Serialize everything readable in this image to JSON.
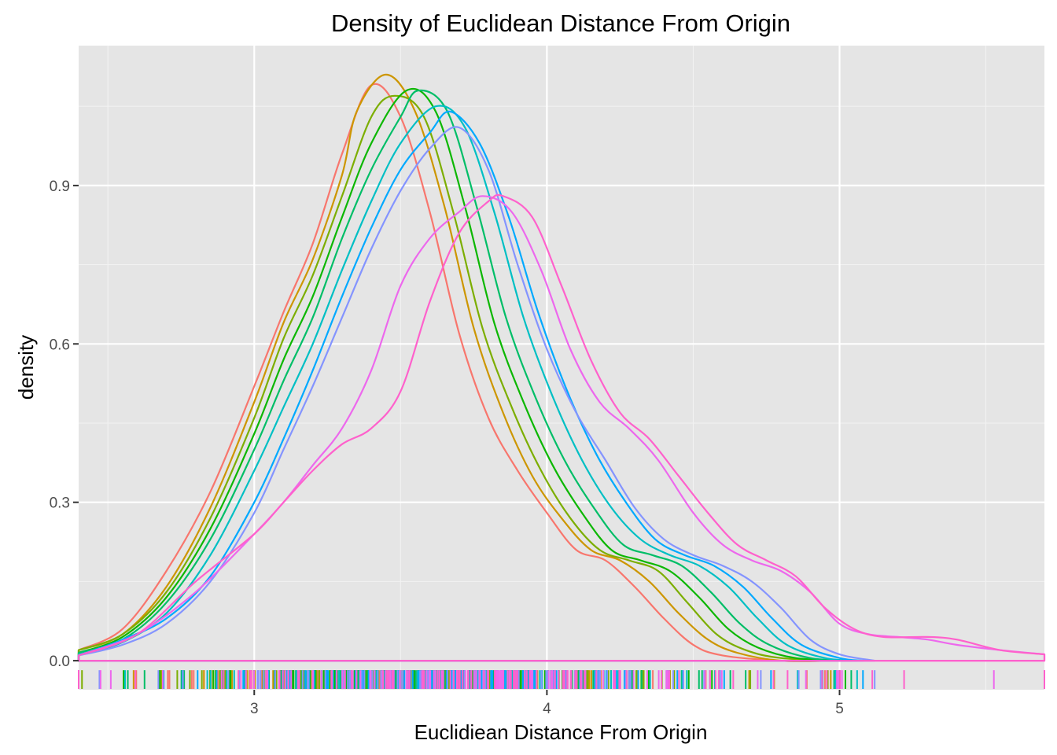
{
  "chart_data": {
    "type": "density",
    "title": "Density of Euclidean Distance From Origin",
    "xlabel": "Euclidiean Distance From Origin",
    "ylabel": "density",
    "xlim": [
      2.4,
      5.7
    ],
    "ylim": [
      -0.055,
      1.165
    ],
    "x_ticks": [
      {
        "value": 3,
        "label": "3"
      },
      {
        "value": 4,
        "label": "4"
      },
      {
        "value": 5,
        "label": "5"
      }
    ],
    "y_ticks": [
      {
        "value": 0.0,
        "label": "0.0"
      },
      {
        "value": 0.3,
        "label": "0.3"
      },
      {
        "value": 0.6,
        "label": "0.6"
      },
      {
        "value": 0.9,
        "label": "0.9"
      }
    ],
    "x_minor": [
      2.5,
      3.5,
      4.5,
      5.5
    ],
    "y_minor": [
      0.15,
      0.45,
      0.75,
      1.05
    ],
    "grid": true,
    "legend": "none",
    "rug": true,
    "series": [
      {
        "color": "#F8766D",
        "x_max": 4.95,
        "points": [
          [
            2.4,
            0.02
          ],
          [
            2.55,
            0.06
          ],
          [
            2.7,
            0.17
          ],
          [
            2.85,
            0.32
          ],
          [
            3.0,
            0.52
          ],
          [
            3.1,
            0.66
          ],
          [
            3.2,
            0.79
          ],
          [
            3.3,
            0.96
          ],
          [
            3.4,
            1.09
          ],
          [
            3.5,
            1.03
          ],
          [
            3.6,
            0.85
          ],
          [
            3.7,
            0.62
          ],
          [
            3.8,
            0.46
          ],
          [
            3.9,
            0.36
          ],
          [
            4.0,
            0.28
          ],
          [
            4.1,
            0.21
          ],
          [
            4.2,
            0.19
          ],
          [
            4.3,
            0.14
          ],
          [
            4.4,
            0.08
          ],
          [
            4.5,
            0.03
          ],
          [
            4.6,
            0.01
          ],
          [
            4.8,
            0.0
          ],
          [
            4.95,
            0.0
          ]
        ]
      },
      {
        "color": "#CD9600",
        "x_max": 4.97,
        "points": [
          [
            2.4,
            0.02
          ],
          [
            2.55,
            0.05
          ],
          [
            2.7,
            0.14
          ],
          [
            2.85,
            0.29
          ],
          [
            3.0,
            0.49
          ],
          [
            3.1,
            0.64
          ],
          [
            3.2,
            0.76
          ],
          [
            3.3,
            0.92
          ],
          [
            3.35,
            1.04
          ],
          [
            3.45,
            1.11
          ],
          [
            3.55,
            1.04
          ],
          [
            3.65,
            0.86
          ],
          [
            3.75,
            0.63
          ],
          [
            3.85,
            0.47
          ],
          [
            3.95,
            0.35
          ],
          [
            4.05,
            0.27
          ],
          [
            4.15,
            0.21
          ],
          [
            4.25,
            0.19
          ],
          [
            4.35,
            0.15
          ],
          [
            4.45,
            0.09
          ],
          [
            4.55,
            0.04
          ],
          [
            4.65,
            0.015
          ],
          [
            4.8,
            0.0
          ],
          [
            4.97,
            0.0
          ]
        ]
      },
      {
        "color": "#7CAE00",
        "x_max": 5.0,
        "points": [
          [
            2.4,
            0.02
          ],
          [
            2.55,
            0.05
          ],
          [
            2.7,
            0.13
          ],
          [
            2.85,
            0.27
          ],
          [
            3.0,
            0.46
          ],
          [
            3.1,
            0.61
          ],
          [
            3.2,
            0.73
          ],
          [
            3.3,
            0.88
          ],
          [
            3.4,
            1.03
          ],
          [
            3.48,
            1.07
          ],
          [
            3.58,
            1.03
          ],
          [
            3.68,
            0.85
          ],
          [
            3.78,
            0.63
          ],
          [
            3.88,
            0.48
          ],
          [
            3.98,
            0.36
          ],
          [
            4.08,
            0.27
          ],
          [
            4.18,
            0.21
          ],
          [
            4.28,
            0.19
          ],
          [
            4.38,
            0.17
          ],
          [
            4.48,
            0.11
          ],
          [
            4.58,
            0.05
          ],
          [
            4.68,
            0.02
          ],
          [
            4.8,
            0.005
          ],
          [
            5.0,
            0.0
          ]
        ]
      },
      {
        "color": "#0CB702",
        "x_max": 5.02,
        "points": [
          [
            2.4,
            0.015
          ],
          [
            2.55,
            0.045
          ],
          [
            2.7,
            0.12
          ],
          [
            2.85,
            0.25
          ],
          [
            3.0,
            0.43
          ],
          [
            3.1,
            0.57
          ],
          [
            3.2,
            0.69
          ],
          [
            3.3,
            0.84
          ],
          [
            3.4,
            0.98
          ],
          [
            3.52,
            1.08
          ],
          [
            3.62,
            1.04
          ],
          [
            3.72,
            0.86
          ],
          [
            3.82,
            0.64
          ],
          [
            3.92,
            0.49
          ],
          [
            4.02,
            0.37
          ],
          [
            4.12,
            0.28
          ],
          [
            4.22,
            0.21
          ],
          [
            4.32,
            0.19
          ],
          [
            4.42,
            0.17
          ],
          [
            4.52,
            0.12
          ],
          [
            4.62,
            0.06
          ],
          [
            4.72,
            0.025
          ],
          [
            4.85,
            0.005
          ],
          [
            5.02,
            0.0
          ]
        ]
      },
      {
        "color": "#00BE67",
        "x_max": 5.04,
        "points": [
          [
            2.4,
            0.015
          ],
          [
            2.55,
            0.04
          ],
          [
            2.7,
            0.11
          ],
          [
            2.85,
            0.23
          ],
          [
            3.0,
            0.4
          ],
          [
            3.1,
            0.53
          ],
          [
            3.2,
            0.65
          ],
          [
            3.3,
            0.8
          ],
          [
            3.4,
            0.93
          ],
          [
            3.5,
            1.03
          ],
          [
            3.56,
            1.08
          ],
          [
            3.66,
            1.04
          ],
          [
            3.76,
            0.86
          ],
          [
            3.86,
            0.65
          ],
          [
            3.96,
            0.5
          ],
          [
            4.06,
            0.38
          ],
          [
            4.16,
            0.29
          ],
          [
            4.26,
            0.22
          ],
          [
            4.36,
            0.2
          ],
          [
            4.46,
            0.18
          ],
          [
            4.56,
            0.13
          ],
          [
            4.66,
            0.07
          ],
          [
            4.76,
            0.03
          ],
          [
            4.9,
            0.005
          ],
          [
            5.04,
            0.0
          ]
        ]
      },
      {
        "color": "#00BFC4",
        "x_max": 5.06,
        "points": [
          [
            2.4,
            0.012
          ],
          [
            2.55,
            0.035
          ],
          [
            2.7,
            0.09
          ],
          [
            2.85,
            0.2
          ],
          [
            3.0,
            0.36
          ],
          [
            3.1,
            0.48
          ],
          [
            3.2,
            0.6
          ],
          [
            3.3,
            0.74
          ],
          [
            3.4,
            0.87
          ],
          [
            3.5,
            0.98
          ],
          [
            3.62,
            1.05
          ],
          [
            3.72,
            1.01
          ],
          [
            3.82,
            0.85
          ],
          [
            3.92,
            0.65
          ],
          [
            4.02,
            0.5
          ],
          [
            4.12,
            0.38
          ],
          [
            4.22,
            0.29
          ],
          [
            4.32,
            0.23
          ],
          [
            4.42,
            0.2
          ],
          [
            4.52,
            0.18
          ],
          [
            4.62,
            0.14
          ],
          [
            4.72,
            0.08
          ],
          [
            4.82,
            0.03
          ],
          [
            4.95,
            0.005
          ],
          [
            5.06,
            0.0
          ]
        ]
      },
      {
        "color": "#00A9FF",
        "x_max": 5.08,
        "points": [
          [
            2.4,
            0.01
          ],
          [
            2.55,
            0.04
          ],
          [
            2.7,
            0.08
          ],
          [
            2.85,
            0.16
          ],
          [
            3.0,
            0.3
          ],
          [
            3.1,
            0.42
          ],
          [
            3.2,
            0.55
          ],
          [
            3.3,
            0.69
          ],
          [
            3.4,
            0.82
          ],
          [
            3.5,
            0.93
          ],
          [
            3.6,
            1.0
          ],
          [
            3.67,
            1.04
          ],
          [
            3.77,
            0.98
          ],
          [
            3.87,
            0.84
          ],
          [
            3.97,
            0.66
          ],
          [
            4.07,
            0.51
          ],
          [
            4.17,
            0.39
          ],
          [
            4.27,
            0.3
          ],
          [
            4.37,
            0.23
          ],
          [
            4.47,
            0.2
          ],
          [
            4.57,
            0.18
          ],
          [
            4.67,
            0.14
          ],
          [
            4.77,
            0.08
          ],
          [
            4.87,
            0.03
          ],
          [
            5.0,
            0.005
          ],
          [
            5.08,
            0.0
          ]
        ]
      },
      {
        "color": "#8494FF",
        "x_max": 5.12,
        "points": [
          [
            2.4,
            0.01
          ],
          [
            2.55,
            0.03
          ],
          [
            2.7,
            0.07
          ],
          [
            2.85,
            0.15
          ],
          [
            3.0,
            0.28
          ],
          [
            3.1,
            0.4
          ],
          [
            3.2,
            0.52
          ],
          [
            3.3,
            0.65
          ],
          [
            3.4,
            0.78
          ],
          [
            3.5,
            0.89
          ],
          [
            3.6,
            0.97
          ],
          [
            3.7,
            1.01
          ],
          [
            3.8,
            0.93
          ],
          [
            3.9,
            0.75
          ],
          [
            4.0,
            0.59
          ],
          [
            4.1,
            0.47
          ],
          [
            4.2,
            0.38
          ],
          [
            4.3,
            0.29
          ],
          [
            4.4,
            0.23
          ],
          [
            4.5,
            0.2
          ],
          [
            4.6,
            0.18
          ],
          [
            4.7,
            0.15
          ],
          [
            4.8,
            0.1
          ],
          [
            4.9,
            0.04
          ],
          [
            5.0,
            0.012
          ],
          [
            5.12,
            0.0
          ]
        ]
      },
      {
        "color": "#ED68ED",
        "x_max": 5.7,
        "points": [
          [
            2.4,
            0.01
          ],
          [
            2.6,
            0.05
          ],
          [
            2.8,
            0.13
          ],
          [
            3.0,
            0.24
          ],
          [
            3.1,
            0.3
          ],
          [
            3.2,
            0.37
          ],
          [
            3.3,
            0.44
          ],
          [
            3.4,
            0.55
          ],
          [
            3.5,
            0.71
          ],
          [
            3.6,
            0.8
          ],
          [
            3.7,
            0.85
          ],
          [
            3.78,
            0.88
          ],
          [
            3.88,
            0.85
          ],
          [
            3.98,
            0.74
          ],
          [
            4.08,
            0.59
          ],
          [
            4.18,
            0.49
          ],
          [
            4.28,
            0.44
          ],
          [
            4.38,
            0.38
          ],
          [
            4.5,
            0.28
          ],
          [
            4.6,
            0.22
          ],
          [
            4.7,
            0.19
          ],
          [
            4.8,
            0.17
          ],
          [
            4.9,
            0.13
          ],
          [
            5.0,
            0.07
          ],
          [
            5.1,
            0.05
          ],
          [
            5.2,
            0.045
          ],
          [
            5.3,
            0.04
          ],
          [
            5.4,
            0.03
          ],
          [
            5.55,
            0.02
          ],
          [
            5.7,
            0.012
          ]
        ]
      },
      {
        "color": "#FF61CC",
        "x_max": 5.7,
        "points": [
          [
            2.4,
            0.01
          ],
          [
            2.6,
            0.05
          ],
          [
            2.8,
            0.15
          ],
          [
            3.0,
            0.24
          ],
          [
            3.1,
            0.3
          ],
          [
            3.2,
            0.36
          ],
          [
            3.3,
            0.41
          ],
          [
            3.4,
            0.44
          ],
          [
            3.5,
            0.51
          ],
          [
            3.6,
            0.68
          ],
          [
            3.7,
            0.81
          ],
          [
            3.8,
            0.87
          ],
          [
            3.85,
            0.88
          ],
          [
            3.95,
            0.84
          ],
          [
            4.05,
            0.71
          ],
          [
            4.15,
            0.57
          ],
          [
            4.25,
            0.47
          ],
          [
            4.35,
            0.42
          ],
          [
            4.45,
            0.35
          ],
          [
            4.55,
            0.28
          ],
          [
            4.65,
            0.22
          ],
          [
            4.75,
            0.19
          ],
          [
            4.85,
            0.16
          ],
          [
            4.95,
            0.1
          ],
          [
            5.05,
            0.06
          ],
          [
            5.15,
            0.045
          ],
          [
            5.3,
            0.045
          ],
          [
            5.4,
            0.04
          ],
          [
            5.55,
            0.02
          ],
          [
            5.7,
            0.012
          ]
        ]
      }
    ]
  }
}
